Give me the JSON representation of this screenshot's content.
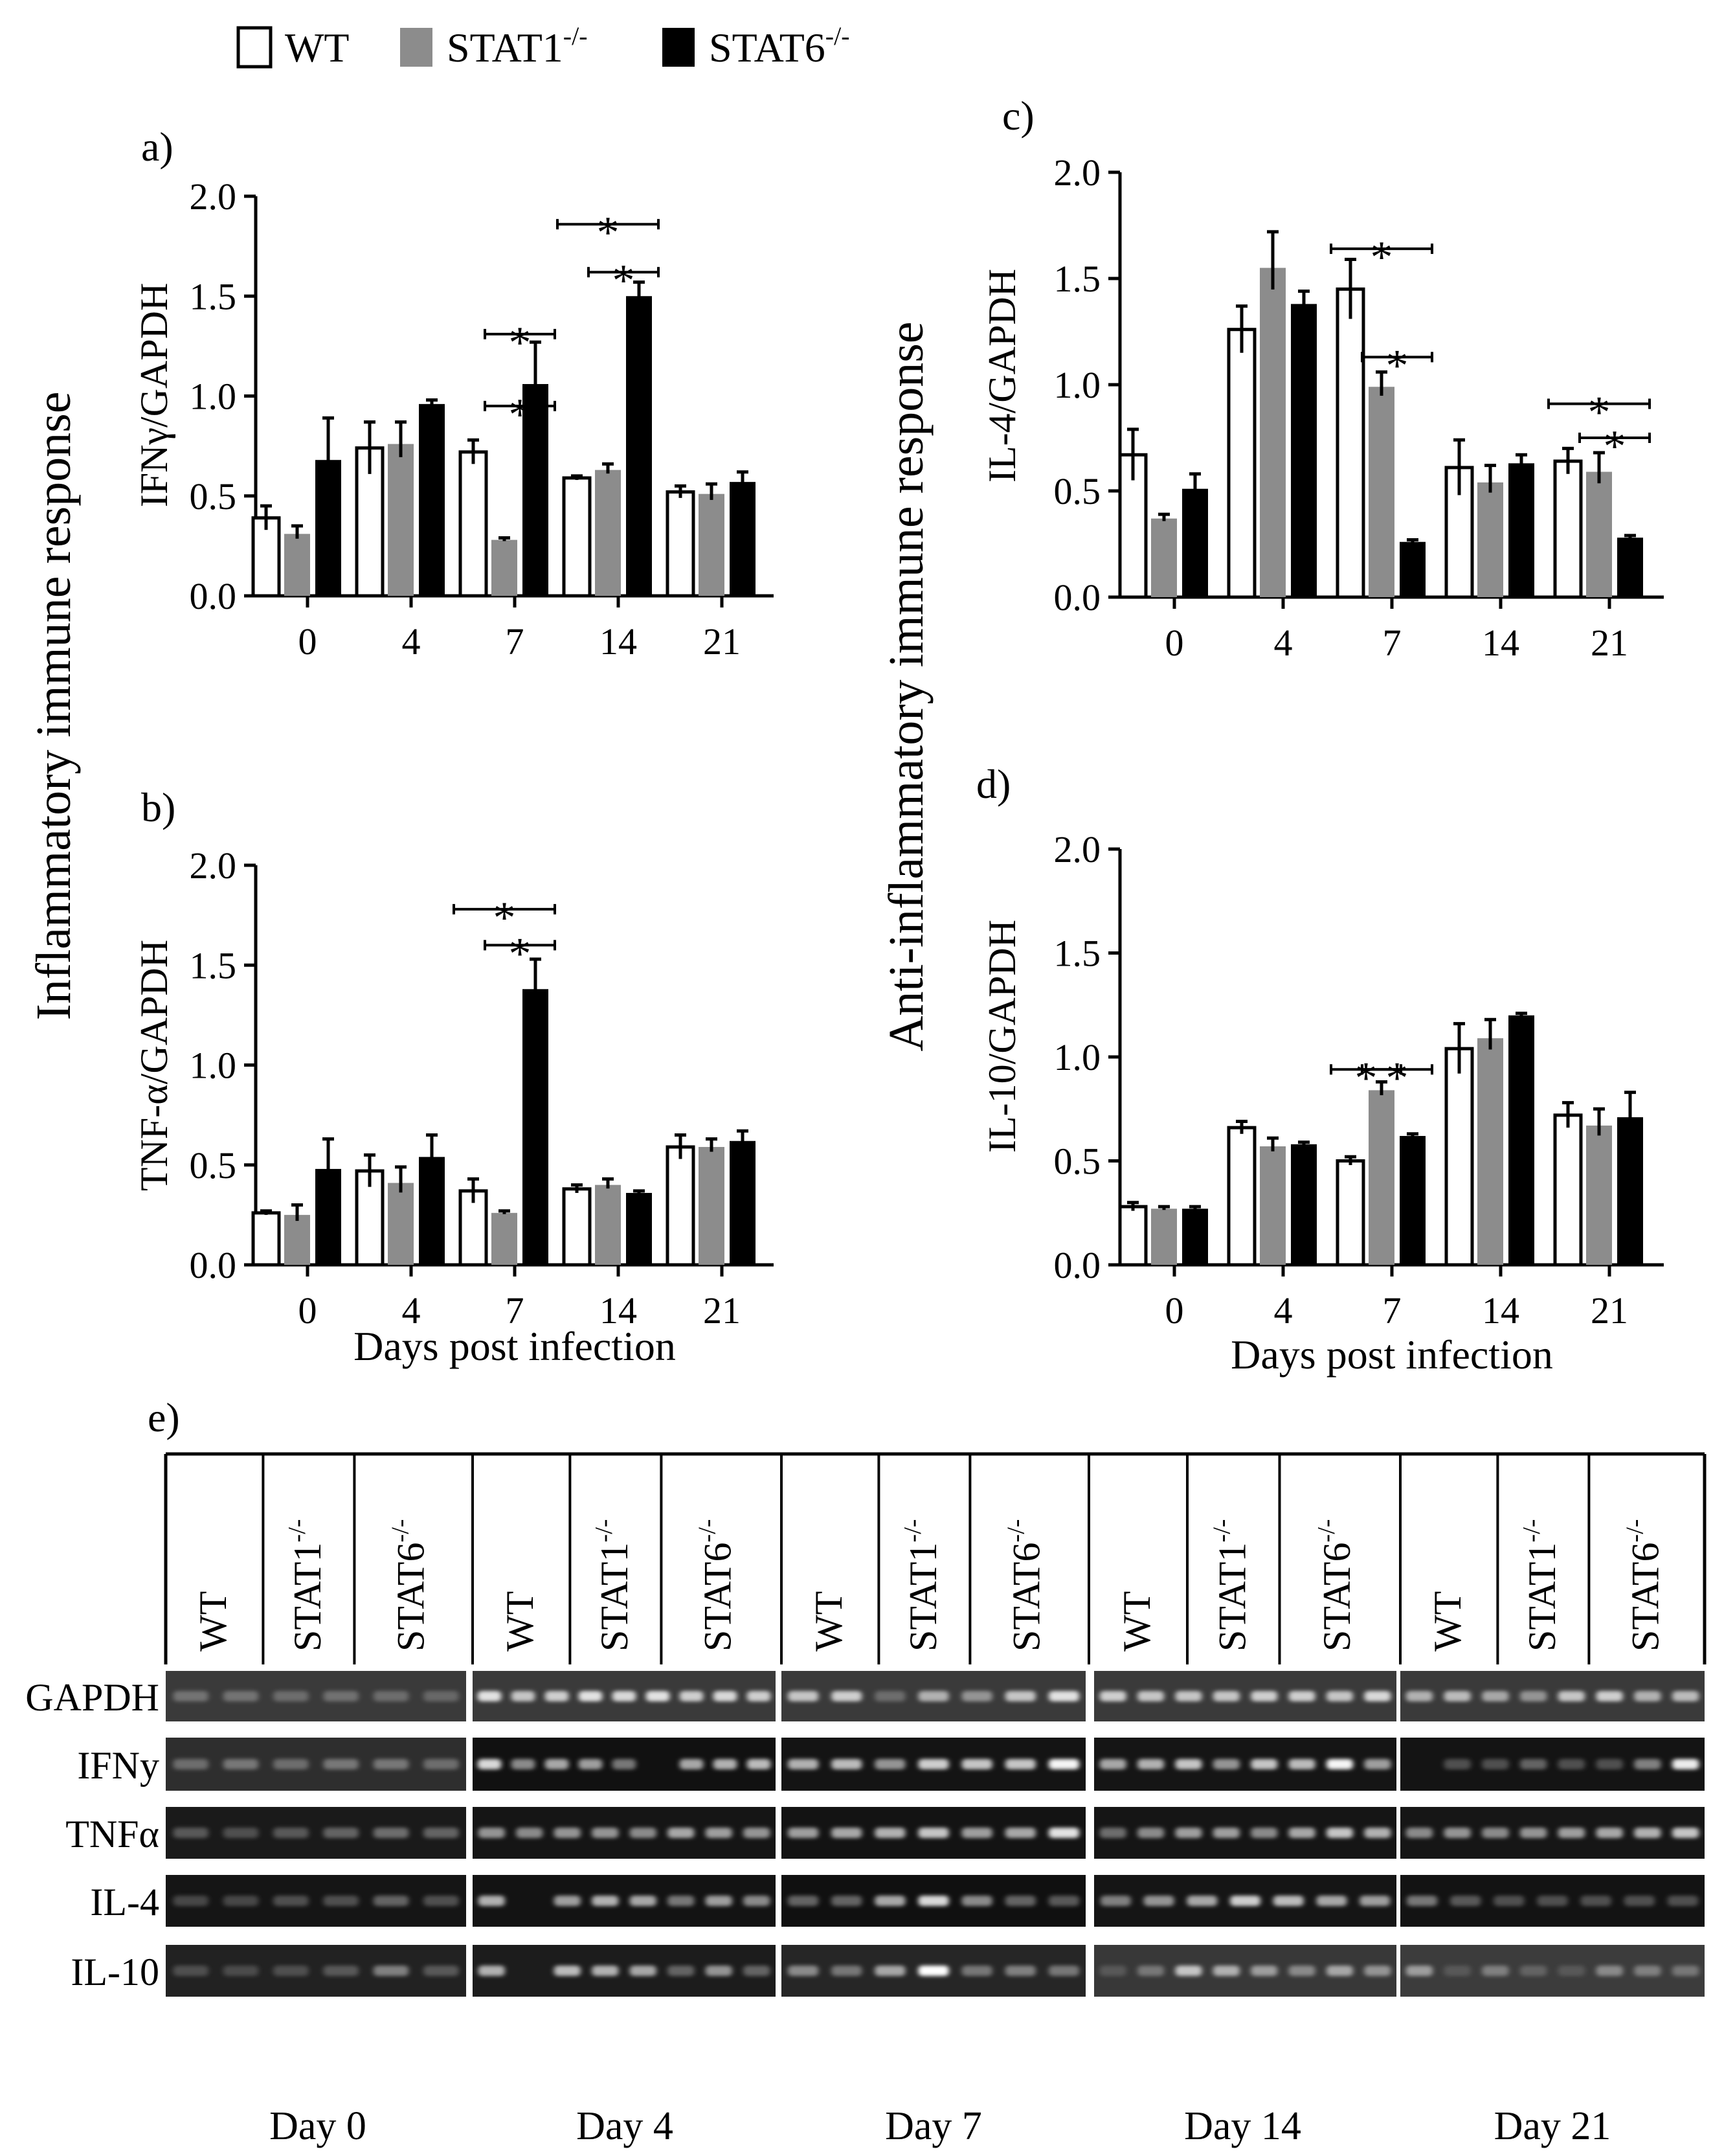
{
  "legend": {
    "entries": [
      {
        "label_main": "WT",
        "label_sup": "",
        "fill": "#ffffff"
      },
      {
        "label_main": "STAT1",
        "label_sup": "-/-",
        "fill": "#8c8c8c"
      },
      {
        "label_main": "STAT6",
        "label_sup": "-/-",
        "fill": "#000000"
      }
    ]
  },
  "colors": {
    "wt": "#ffffff",
    "stat1": "#8c8c8c",
    "stat6": "#000000",
    "axis": "#000000"
  },
  "left_group_label": "Inflammatory  immune  response",
  "right_group_label": "Anti-inflammatory  immune  response",
  "chart_data": [
    {
      "panel": "a)",
      "type": "bar",
      "ylabel": "IFNγ/GAPDH",
      "xlabel": "",
      "categories": [
        "0",
        "4",
        "7",
        "14",
        "21"
      ],
      "ylim": [
        0,
        2.0
      ],
      "yticks": [
        "0.0",
        "0.5",
        "1.0",
        "1.5",
        "2.0"
      ],
      "series": [
        {
          "name": "WT",
          "values": [
            0.39,
            0.74,
            0.72,
            0.59,
            0.52
          ],
          "errors": [
            0.06,
            0.13,
            0.06,
            0.01,
            0.03
          ]
        },
        {
          "name": "STAT1-/-",
          "values": [
            0.31,
            0.76,
            0.28,
            0.63,
            0.51
          ],
          "errors": [
            0.04,
            0.11,
            0.01,
            0.03,
            0.05
          ]
        },
        {
          "name": "STAT6-/-",
          "values": [
            0.68,
            0.96,
            1.06,
            1.5,
            0.57
          ],
          "errors": [
            0.21,
            0.02,
            0.21,
            0.07,
            0.05
          ]
        }
      ],
      "annotations": [
        {
          "text": "*",
          "category": "7",
          "from": "STAT1-/-",
          "to": "STAT6-/-",
          "level": 0.95
        },
        {
          "text": "*",
          "category": "7",
          "from": "STAT1-/-",
          "to": "STAT6-/-",
          "level": 1.31
        },
        {
          "text": "*",
          "category": "14",
          "from": "STAT1-/-",
          "to": "STAT6-/-",
          "level": 1.62
        },
        {
          "text": "*",
          "category": "14",
          "from": "WT",
          "to": "STAT6-/-",
          "level": 1.86
        }
      ]
    },
    {
      "panel": "b)",
      "type": "bar",
      "ylabel": "TNF-α/GAPDH",
      "xlabel": "Days post infection",
      "categories": [
        "0",
        "4",
        "7",
        "14",
        "21"
      ],
      "ylim": [
        0,
        2.0
      ],
      "yticks": [
        "0.0",
        "0.5",
        "1.0",
        "1.5",
        "2.0"
      ],
      "series": [
        {
          "name": "WT",
          "values": [
            0.26,
            0.47,
            0.37,
            0.38,
            0.59
          ],
          "errors": [
            0.01,
            0.08,
            0.06,
            0.02,
            0.06
          ]
        },
        {
          "name": "STAT1-/-",
          "values": [
            0.25,
            0.41,
            0.26,
            0.4,
            0.59
          ],
          "errors": [
            0.05,
            0.08,
            0.01,
            0.03,
            0.04
          ]
        },
        {
          "name": "STAT6-/-",
          "values": [
            0.48,
            0.54,
            1.38,
            0.36,
            0.62
          ],
          "errors": [
            0.15,
            0.11,
            0.15,
            0.01,
            0.05
          ]
        }
      ],
      "annotations": [
        {
          "text": "*",
          "category": "7",
          "from": "STAT1-/-",
          "to": "STAT6-/-",
          "level": 1.6
        },
        {
          "text": "*",
          "category": "7",
          "from": "WT",
          "to": "STAT6-/-",
          "level": 1.78
        }
      ]
    },
    {
      "panel": "c)",
      "type": "bar",
      "ylabel": "IL-4/GAPDH",
      "xlabel": "",
      "categories": [
        "0",
        "4",
        "7",
        "14",
        "21"
      ],
      "ylim": [
        0,
        2.0
      ],
      "yticks": [
        "0.0",
        "0.5",
        "1.0",
        "1.5",
        "2.0"
      ],
      "series": [
        {
          "name": "WT",
          "values": [
            0.67,
            1.26,
            1.45,
            0.61,
            0.64
          ],
          "errors": [
            0.12,
            0.11,
            0.14,
            0.13,
            0.06
          ]
        },
        {
          "name": "STAT1-/-",
          "values": [
            0.37,
            1.55,
            0.99,
            0.54,
            0.59
          ],
          "errors": [
            0.02,
            0.17,
            0.07,
            0.08,
            0.09
          ]
        },
        {
          "name": "STAT6-/-",
          "values": [
            0.51,
            1.38,
            0.26,
            0.63,
            0.28
          ],
          "errors": [
            0.07,
            0.06,
            0.01,
            0.04,
            0.01
          ]
        }
      ],
      "annotations": [
        {
          "text": "*",
          "category": "7",
          "from": "STAT1-/-",
          "to": "STAT6-/-",
          "level": 1.13
        },
        {
          "text": "*",
          "category": "7",
          "from": "WT",
          "to": "STAT6-/-",
          "level": 1.64
        },
        {
          "text": "*",
          "category": "21",
          "from": "STAT1-/-",
          "to": "STAT6-/-",
          "level": 0.75
        },
        {
          "text": "*",
          "category": "21",
          "from": "WT",
          "to": "STAT6-/-",
          "level": 0.91
        }
      ]
    },
    {
      "panel": "d)",
      "type": "bar",
      "ylabel": "IL-10/GAPDH",
      "xlabel": "Days post  infection",
      "categories": [
        "0",
        "4",
        "7",
        "14",
        "21"
      ],
      "ylim": [
        0,
        2.0
      ],
      "yticks": [
        "0.0",
        "0.5",
        "1.0",
        "1.5",
        "2.0"
      ],
      "series": [
        {
          "name": "WT",
          "values": [
            0.28,
            0.66,
            0.5,
            1.04,
            0.72
          ],
          "errors": [
            0.02,
            0.03,
            0.02,
            0.12,
            0.06
          ]
        },
        {
          "name": "STAT1-/-",
          "values": [
            0.27,
            0.57,
            0.84,
            1.09,
            0.67
          ],
          "errors": [
            0.01,
            0.04,
            0.04,
            0.09,
            0.08
          ]
        },
        {
          "name": "STAT6-/-",
          "values": [
            0.27,
            0.58,
            0.62,
            1.2,
            0.71
          ],
          "errors": [
            0.01,
            0.01,
            0.01,
            0.01,
            0.12
          ]
        }
      ],
      "annotations": [
        {
          "text": "*",
          "category": "7",
          "from": "WT",
          "to": "STAT1-/-",
          "level": 0.94
        },
        {
          "text": "*",
          "category": "7",
          "from": "STAT1-/-",
          "to": "STAT6-/-",
          "level": 0.94
        }
      ]
    }
  ],
  "blot": {
    "panel": "e)",
    "days": [
      "Day 0",
      "Day 4",
      "Day 7",
      "Day 14",
      "Day 21"
    ],
    "columns": [
      {
        "main": "WT",
        "sup": ""
      },
      {
        "main": "STAT1",
        "sup": "-/-"
      },
      {
        "main": "STAT6",
        "sup": "-/-"
      }
    ],
    "rows": [
      "GAPDH",
      "IFNy",
      "TNFα",
      "IL-4",
      "IL-10"
    ]
  }
}
